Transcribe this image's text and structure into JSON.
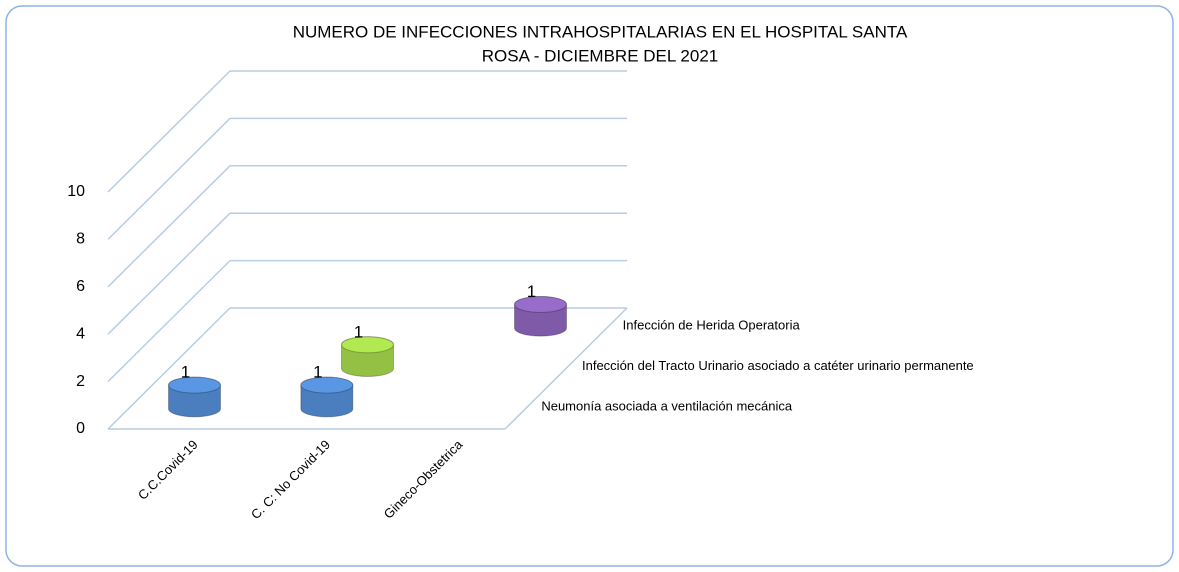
{
  "chart_data": {
    "type": "bar3d",
    "title": [
      "NUMERO DE INFECCIONES INTRAHOSPITALARIAS EN EL HOSPITAL SANTA",
      "ROSA - DICIEMBRE DEL 2021"
    ],
    "categories": [
      "C.C.Covid-19",
      "C. C: No Covid-19",
      "Gineco-Obstetrica"
    ],
    "series": [
      {
        "name": "Neumonía asociada a ventilación mecánica",
        "color": "#4a7ebf",
        "values": [
          1,
          1,
          null
        ]
      },
      {
        "name": "Infección del Tracto Urinario asociado a catéter urinario permanente",
        "color": "#94c143",
        "values": [
          null,
          1,
          null
        ]
      },
      {
        "name": "Infección de Herida Operatoria",
        "color": "#7e5aa8",
        "values": [
          null,
          null,
          1
        ]
      }
    ],
    "ylim": [
      0,
      10
    ],
    "yticks": [
      0,
      2,
      4,
      6,
      8,
      10
    ],
    "grid": true
  }
}
